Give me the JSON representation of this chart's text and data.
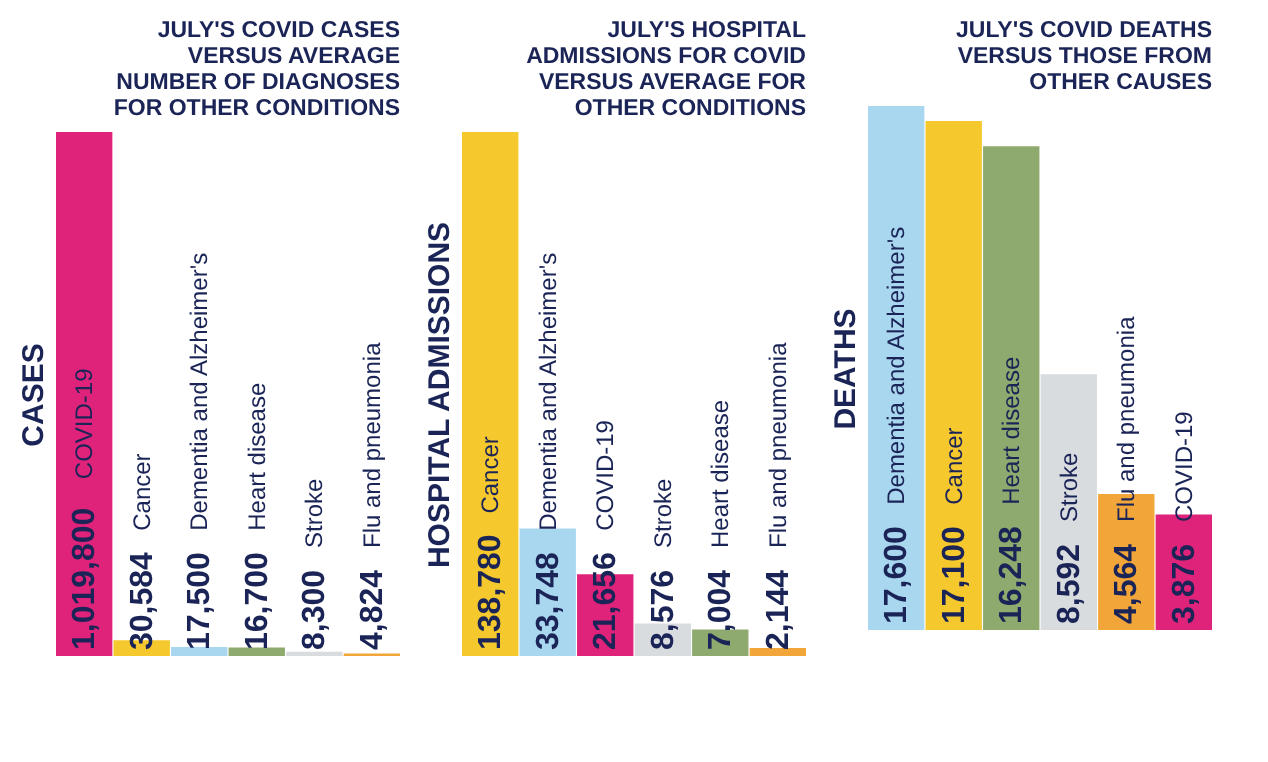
{
  "chart_data": [
    {
      "type": "bar",
      "title": "JULY'S COVID CASES VERSUS AVERAGE NUMBER OF DIAGNOSES FOR OTHER CONDITIONS",
      "ylabel": "CASES",
      "tick_labels": false,
      "categories": [
        "COVID-19",
        "Cancer",
        "Dementia and Alzheimer's",
        "Heart disease",
        "Stroke",
        "Flu and pneumonia"
      ],
      "values": [
        1019800,
        30584,
        17500,
        16700,
        8300,
        4824
      ],
      "value_labels": [
        "1,019,800",
        "30,584",
        "17,500",
        "16,700",
        "8,300",
        "4,824"
      ],
      "colors": [
        "#e0237a",
        "#f5c92e",
        "#a9d7ef",
        "#8faa6e",
        "#d9dcdf",
        "#f2a63a"
      ]
    },
    {
      "type": "bar",
      "title": "JULY'S HOSPITAL ADMISSIONS FOR COVID VERSUS AVERAGE FOR OTHER CONDITIONS",
      "ylabel": "HOSPITAL ADMISSIONS",
      "tick_labels": false,
      "categories": [
        "Cancer",
        "Dementia and Alzheimer's",
        "COVID-19",
        "Stroke",
        "Heart disease",
        "Flu and pneumonia"
      ],
      "values": [
        138780,
        33748,
        21656,
        8576,
        7004,
        2144
      ],
      "value_labels": [
        "138,780",
        "33,748",
        "21,656",
        "8,576",
        "7,004",
        "2,144"
      ],
      "colors": [
        "#f5c92e",
        "#a9d7ef",
        "#e0237a",
        "#d9dcdf",
        "#8faa6e",
        "#f2a63a"
      ]
    },
    {
      "type": "bar",
      "title": "JULY'S COVID DEATHS VERSUS THOSE FROM OTHER CAUSES",
      "ylabel": "DEATHS",
      "tick_labels": false,
      "categories": [
        "Dementia and Alzheimer's",
        "Cancer",
        "Heart disease",
        "Stroke",
        "Flu and pneumonia",
        "COVID-19"
      ],
      "values": [
        17600,
        17100,
        16248,
        8592,
        4564,
        3876
      ],
      "value_labels": [
        "17,600",
        "17,100",
        "16,248",
        "8,592",
        "4,564",
        "3,876"
      ],
      "colors": [
        "#a9d7ef",
        "#f5c92e",
        "#8faa6e",
        "#d9dcdf",
        "#f2a63a",
        "#e0237a"
      ]
    }
  ]
}
